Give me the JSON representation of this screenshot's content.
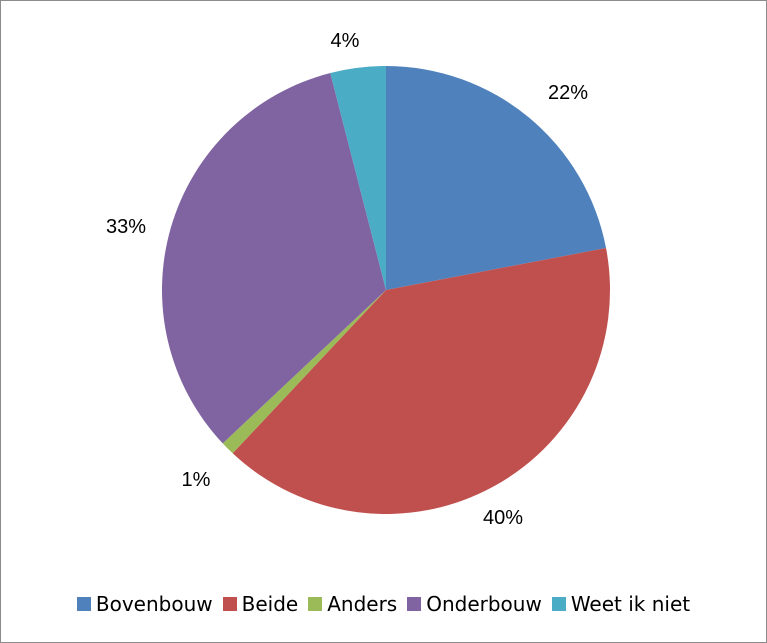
{
  "chart_data": {
    "type": "pie",
    "categories": [
      "Bovenbouw",
      "Beide",
      "Anders",
      "Onderbouw",
      "Weet ik niet"
    ],
    "values": [
      22,
      40,
      1,
      33,
      4
    ],
    "labels": [
      "22%",
      "40%",
      "1%",
      "33%",
      "4%"
    ],
    "colors": [
      "#4F81BD",
      "#C0504D",
      "#9BBB59",
      "#8064A2",
      "#4BACC6"
    ],
    "legend_position": "bottom"
  }
}
